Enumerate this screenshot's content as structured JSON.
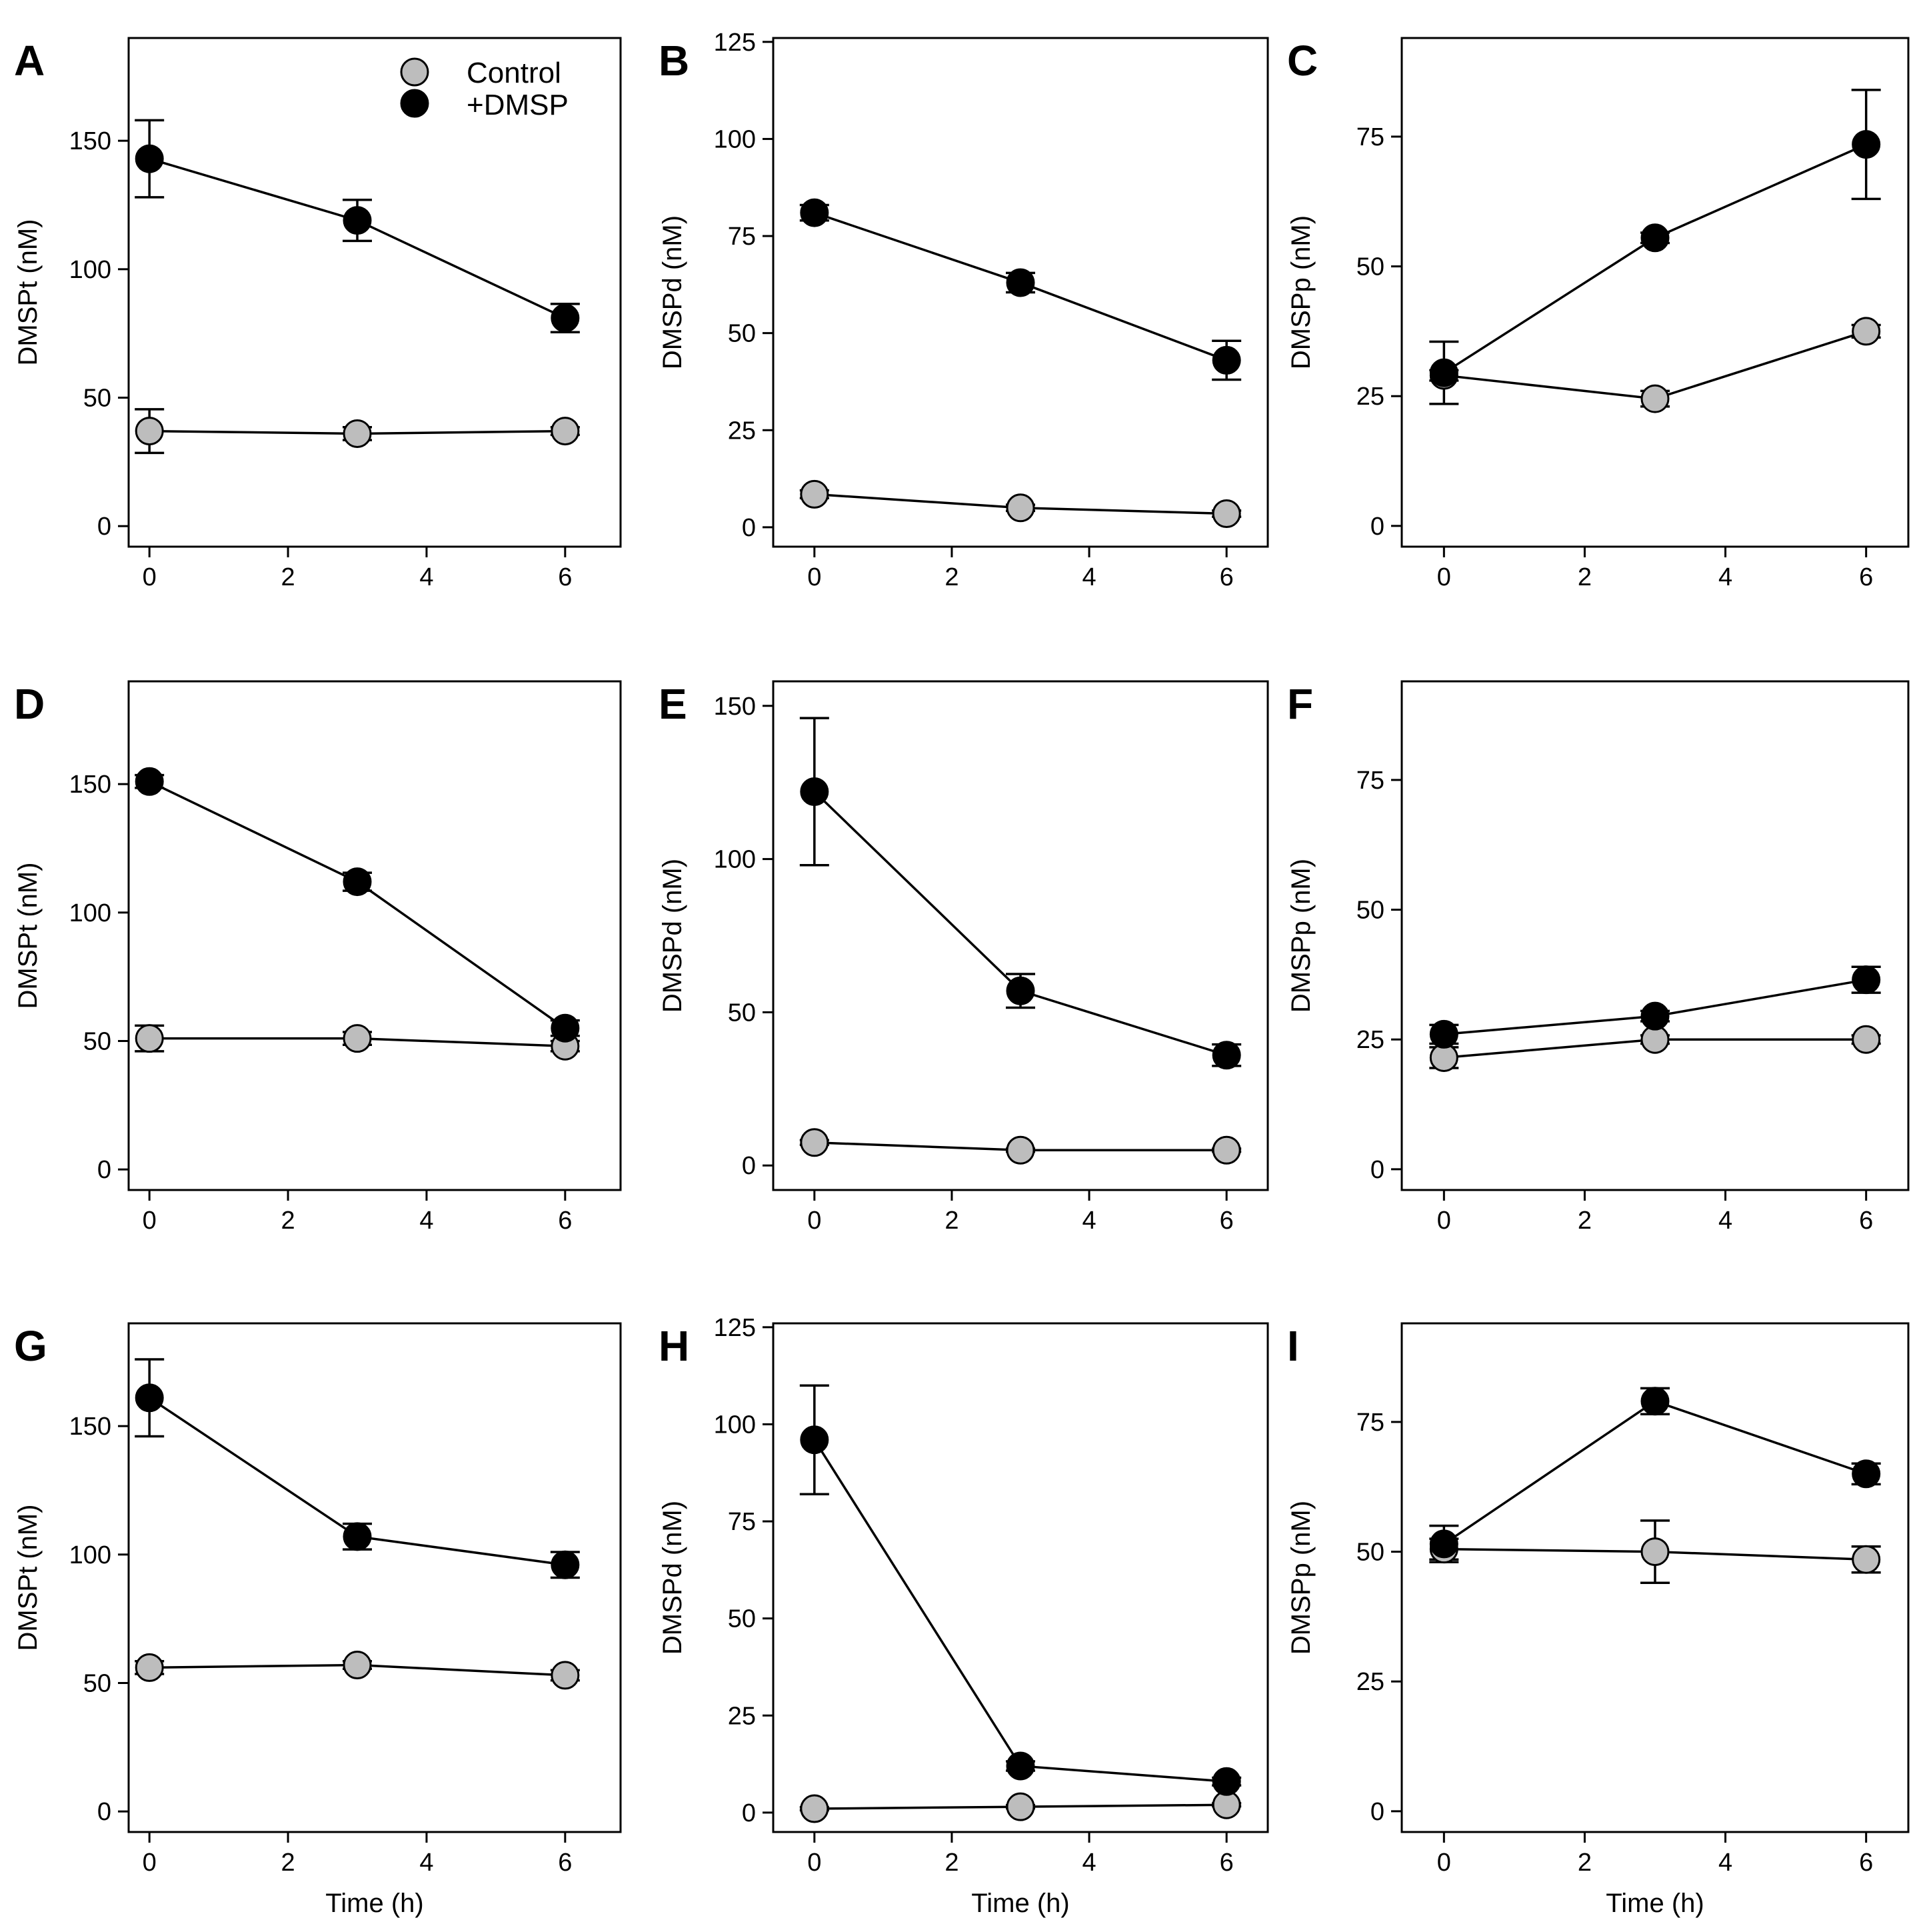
{
  "chart_data": [
    {
      "type": "line",
      "panel": "A",
      "ylabel": "DMSPt (nM)",
      "xlabel": "",
      "x": [
        0,
        3,
        6
      ],
      "xlim": [
        -0.3,
        6.8
      ],
      "xticks": [
        0,
        2,
        4,
        6
      ],
      "ylim": [
        -8,
        190
      ],
      "yticks": [
        0,
        50,
        100,
        150
      ],
      "series": [
        {
          "name": "Control",
          "values": [
            37,
            36,
            37
          ],
          "errors": [
            8.5,
            2.5,
            1.5
          ]
        },
        {
          "name": "+DMSP",
          "values": [
            143,
            119,
            81
          ],
          "errors": [
            15,
            8,
            5.5
          ]
        }
      ]
    },
    {
      "type": "line",
      "panel": "B",
      "ylabel": "DMSPd (nM)",
      "xlabel": "",
      "x": [
        0,
        3,
        6
      ],
      "xlim": [
        -0.6,
        6.6
      ],
      "xticks": [
        0,
        2,
        4,
        6
      ],
      "ylim": [
        -5,
        126
      ],
      "yticks": [
        0,
        25,
        50,
        75,
        100,
        125
      ],
      "series": [
        {
          "name": "Control",
          "values": [
            8.5,
            5,
            3.5
          ],
          "errors": [
            1,
            0.8,
            0.8
          ]
        },
        {
          "name": "+DMSP",
          "values": [
            81,
            63,
            43
          ],
          "errors": [
            2,
            2.5,
            5
          ]
        }
      ]
    },
    {
      "type": "line",
      "panel": "C",
      "ylabel": "DMSPp (nM)",
      "xlabel": "",
      "x": [
        0,
        3,
        6
      ],
      "xlim": [
        -0.6,
        6.6
      ],
      "xticks": [
        0,
        2,
        4,
        6
      ],
      "ylim": [
        -4,
        94
      ],
      "yticks": [
        0,
        25,
        50,
        75
      ],
      "series": [
        {
          "name": "Control",
          "values": [
            29,
            24.5,
            37.5
          ],
          "errors": [
            1,
            1.5,
            1.2
          ]
        },
        {
          "name": "+DMSP",
          "values": [
            29.5,
            55.5,
            73.5
          ],
          "errors": [
            6,
            1,
            10.5
          ]
        }
      ]
    },
    {
      "type": "line",
      "panel": "D",
      "ylabel": "DMSPt (nM)",
      "xlabel": "",
      "x": [
        0,
        3,
        6
      ],
      "xlim": [
        -0.3,
        6.8
      ],
      "xticks": [
        0,
        2,
        4,
        6
      ],
      "ylim": [
        -8,
        190
      ],
      "yticks": [
        0,
        50,
        100,
        150
      ],
      "series": [
        {
          "name": "Control",
          "values": [
            51,
            51,
            48
          ],
          "errors": [
            5,
            2.5,
            2
          ]
        },
        {
          "name": "+DMSP",
          "values": [
            151,
            112,
            55
          ],
          "errors": [
            2.5,
            3.5,
            3
          ]
        }
      ]
    },
    {
      "type": "line",
      "panel": "E",
      "ylabel": "DMSPd (nM)",
      "xlabel": "",
      "x": [
        0,
        3,
        6
      ],
      "xlim": [
        -0.6,
        6.6
      ],
      "xticks": [
        0,
        2,
        4,
        6
      ],
      "ylim": [
        -8,
        158
      ],
      "yticks": [
        0,
        50,
        100,
        150
      ],
      "series": [
        {
          "name": "Control",
          "values": [
            7.5,
            5,
            5
          ],
          "errors": [
            0.8,
            0.5,
            0.5
          ]
        },
        {
          "name": "+DMSP",
          "values": [
            122,
            57,
            36
          ],
          "errors": [
            24,
            5.5,
            3.5
          ]
        }
      ]
    },
    {
      "type": "line",
      "panel": "F",
      "ylabel": "DMSPp (nM)",
      "xlabel": "",
      "x": [
        0,
        3,
        6
      ],
      "xlim": [
        -0.6,
        6.6
      ],
      "xticks": [
        0,
        2,
        4,
        6
      ],
      "ylim": [
        -4,
        94
      ],
      "yticks": [
        0,
        25,
        50,
        75
      ],
      "series": [
        {
          "name": "Control",
          "values": [
            21.5,
            25,
            25
          ],
          "errors": [
            2,
            0.8,
            0.8
          ]
        },
        {
          "name": "+DMSP",
          "values": [
            26,
            29.5,
            36.5
          ],
          "errors": [
            1.8,
            1,
            2.5
          ]
        }
      ]
    },
    {
      "type": "line",
      "panel": "G",
      "ylabel": "DMSPt (nM)",
      "xlabel": "Time (h)",
      "x": [
        0,
        3,
        6
      ],
      "xlim": [
        -0.3,
        6.8
      ],
      "xticks": [
        0,
        2,
        4,
        6
      ],
      "ylim": [
        -8,
        190
      ],
      "yticks": [
        0,
        50,
        100,
        150
      ],
      "series": [
        {
          "name": "Control",
          "values": [
            56,
            57,
            53
          ],
          "errors": [
            2.5,
            1.5,
            2
          ]
        },
        {
          "name": "+DMSP",
          "values": [
            161,
            107,
            96
          ],
          "errors": [
            15,
            5,
            5
          ]
        }
      ]
    },
    {
      "type": "line",
      "panel": "H",
      "ylabel": "DMSPd (nM)",
      "xlabel": "Time (h)",
      "x": [
        0,
        3,
        6
      ],
      "xlim": [
        -0.6,
        6.6
      ],
      "xticks": [
        0,
        2,
        4,
        6
      ],
      "ylim": [
        -5,
        126
      ],
      "yticks": [
        0,
        25,
        50,
        75,
        100,
        125
      ],
      "series": [
        {
          "name": "Control",
          "values": [
            1,
            1.5,
            2
          ],
          "errors": [
            0.4,
            0.4,
            0.4
          ]
        },
        {
          "name": "+DMSP",
          "values": [
            96,
            12,
            8
          ],
          "errors": [
            14,
            1.2,
            1
          ]
        }
      ]
    },
    {
      "type": "line",
      "panel": "I",
      "ylabel": "DMSPp (nM)",
      "xlabel": "Time (h)",
      "x": [
        0,
        3,
        6
      ],
      "xlim": [
        -0.6,
        6.6
      ],
      "xticks": [
        0,
        2,
        4,
        6
      ],
      "ylim": [
        -4,
        94
      ],
      "yticks": [
        0,
        25,
        50,
        75
      ],
      "series": [
        {
          "name": "Control",
          "values": [
            50.5,
            50,
            48.5
          ],
          "errors": [
            2,
            6,
            2.5
          ]
        },
        {
          "name": "+DMSP",
          "values": [
            51.5,
            79,
            65
          ],
          "errors": [
            3.5,
            2.5,
            2
          ]
        }
      ]
    }
  ],
  "legend": {
    "items": [
      {
        "label": "Control",
        "color": "#bdbdbd"
      },
      {
        "label": "+DMSP",
        "color": "#000000"
      }
    ]
  },
  "colors": {
    "control_fill": "#bdbdbd",
    "dmsp_fill": "#000000",
    "edge": "#000000"
  }
}
